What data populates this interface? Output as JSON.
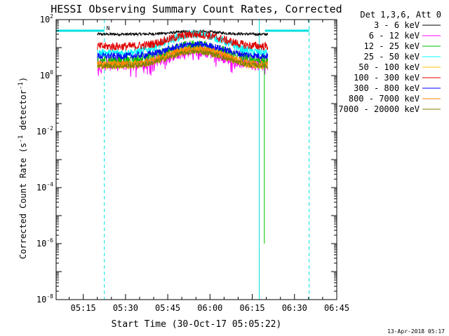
{
  "chart_data": {
    "type": "line",
    "title": "HESSI Observing Summary Count Rates, Corrected",
    "xlabel": "Start Time (30-Oct-17 05:05:22)",
    "ylabel": "Corrected Count Rate (s⁻¹ detector⁻¹)",
    "ylabel_parts": {
      "main": "Corrected Count Rate (s",
      "sup1": "-1",
      "mid": " detector",
      "sup2": "-1",
      "end": ")"
    },
    "x_ticks": [
      "05:15",
      "05:30",
      "05:45",
      "06:00",
      "06:15",
      "06:30",
      "06:45"
    ],
    "x_tick_minutes": [
      15,
      30,
      45,
      60,
      75,
      90,
      105
    ],
    "xlim_minutes": [
      5.37,
      105
    ],
    "y_ticks": [
      {
        "base": "10",
        "exp": "2",
        "value": 100
      },
      {
        "base": "10",
        "exp": "0",
        "value": 1
      },
      {
        "base": "10",
        "exp": "-2",
        "value": 0.01
      },
      {
        "base": "10",
        "exp": "-4",
        "value": 0.0001
      },
      {
        "base": "10",
        "exp": "-6",
        "value": 1e-06
      },
      {
        "base": "10",
        "exp": "-8",
        "value": 1e-08
      }
    ],
    "ylim": [
      1e-08,
      100
    ],
    "y_scale": "log",
    "legend_placement": "right",
    "legend_header": "Det 1,3,6, Att 0",
    "series": [
      {
        "name": "3 - 6 keV",
        "color": "#000000",
        "base": 30,
        "peak": 1.25,
        "noise": 0.05
      },
      {
        "name": "6 - 12 keV",
        "color": "#ff00ff",
        "base": 2.6,
        "peak": 3.0,
        "noise": 0.25
      },
      {
        "name": "12 - 25 keV",
        "color": "#00c000",
        "base": 3.5,
        "peak": 3.4,
        "noise": 0.2
      },
      {
        "name": "25 - 50 keV",
        "color": "#00ffff",
        "base": 6.5,
        "peak": 4.6,
        "noise": 0.15
      },
      {
        "name": "50 - 100 keV",
        "color": "#ffc000",
        "base": 2.3,
        "peak": 3.6,
        "noise": 0.15
      },
      {
        "name": "100 - 300 keV",
        "color": "#e00000",
        "base": 11,
        "peak": 2.7,
        "noise": 0.15
      },
      {
        "name": "300 - 800 keV",
        "color": "#0000ff",
        "base": 5,
        "peak": 2.6,
        "noise": 0.12
      },
      {
        "name": "800 - 7000 keV",
        "color": "#ff8000",
        "base": 2.6,
        "peak": 3.5,
        "noise": 0.12
      },
      {
        "name": "7000 - 20000 keV",
        "color": "#808000",
        "base": 2.2,
        "peak": 3.2,
        "noise": 0.1
      }
    ],
    "data_span_minutes": [
      20,
      80.5
    ],
    "peak_center_minutes": 55,
    "spike_12_25": {
      "minute": 79.3,
      "bottom_value": 1e-06
    },
    "attenuator_bars": [
      {
        "start_minute": 5.37,
        "end_minute": 22.5,
        "value": 40,
        "label": "N"
      },
      {
        "start_minute": 79.5,
        "end_minute": 95.2,
        "value": 40,
        "label": ""
      }
    ],
    "markers": [
      {
        "minute": 5.37,
        "style": "solid"
      },
      {
        "minute": 22.5,
        "style": "dashed"
      },
      {
        "minute": 77.5,
        "style": "solid"
      },
      {
        "minute": 95.2,
        "style": "dashed"
      }
    ]
  },
  "footer": "13-Apr-2018 05:17"
}
